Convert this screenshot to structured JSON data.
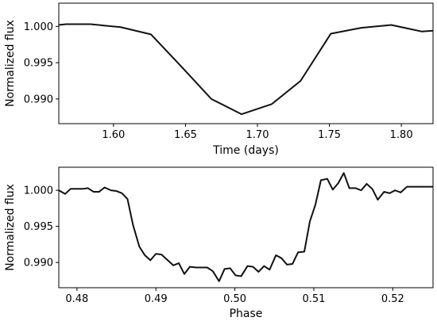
{
  "colors": {
    "line": "#111111",
    "background": "#ffffff"
  },
  "chart_data": [
    {
      "type": "line",
      "xlabel": "Time (days)",
      "ylabel": "Normalized flux",
      "xlim": [
        1.562,
        1.822
      ],
      "ylim": [
        0.9866,
        1.0032
      ],
      "xticks": [
        1.6,
        1.65,
        1.7,
        1.75,
        1.8
      ],
      "xtick_labels": [
        "1.60",
        "1.65",
        "1.70",
        "1.75",
        "1.80"
      ],
      "yticks": [
        0.99,
        0.995,
        1.0
      ],
      "ytick_labels": [
        "0.990",
        "0.995",
        "1.000"
      ],
      "grid": false,
      "series": [
        {
          "x": [
            1.562,
            1.567,
            1.584,
            1.605,
            1.626,
            1.647,
            1.668,
            1.689,
            1.71,
            1.73,
            1.751,
            1.772,
            1.793,
            1.814,
            1.822
          ],
          "y": [
            1.0002,
            1.0003,
            1.0003,
            0.9999,
            0.9989,
            0.9945,
            0.99,
            0.9879,
            0.9893,
            0.9925,
            0.999,
            0.9998,
            1.0002,
            0.9993,
            0.9994
          ]
        }
      ]
    },
    {
      "type": "line",
      "xlabel": "Phase",
      "ylabel": "Normalized flux",
      "xlim": [
        0.4777,
        0.5251
      ],
      "ylim": [
        0.9865,
        1.0032
      ],
      "xticks": [
        0.48,
        0.49,
        0.5,
        0.51,
        0.52
      ],
      "xtick_labels": [
        "0.48",
        "0.49",
        "0.50",
        "0.51",
        "0.52"
      ],
      "yticks": [
        0.99,
        0.995,
        1.0
      ],
      "ytick_labels": [
        "0.990",
        "0.995",
        "1.000"
      ],
      "grid": false,
      "series": [
        {
          "x": [
            0.4777,
            0.4785,
            0.4792,
            0.4799,
            0.4807,
            0.4814,
            0.4821,
            0.4828,
            0.4835,
            0.4843,
            0.485,
            0.4857,
            0.4864,
            0.4871,
            0.4879,
            0.4886,
            0.4893,
            0.49,
            0.4907,
            0.4915,
            0.4922,
            0.4929,
            0.4936,
            0.4943,
            0.4951,
            0.4958,
            0.4965,
            0.4972,
            0.498,
            0.4987,
            0.4994,
            0.5001,
            0.5008,
            0.5016,
            0.5023,
            0.503,
            0.5037,
            0.5044,
            0.5052,
            0.5059,
            0.5066,
            0.5073,
            0.508,
            0.5088,
            0.5095,
            0.5102,
            0.5109,
            0.5117,
            0.5124,
            0.5131,
            0.5138,
            0.5145,
            0.5153,
            0.516,
            0.5167,
            0.5174,
            0.5181,
            0.5189,
            0.5196,
            0.5203,
            0.521,
            0.5218,
            0.5225,
            0.5232,
            0.5239,
            0.5246,
            0.5251
          ],
          "y": [
            1.0,
            0.9995,
            1.0002,
            1.0002,
            1.0002,
            1.0003,
            0.9998,
            0.9998,
            1.0004,
            1.0,
            0.9999,
            0.9996,
            0.9988,
            0.9952,
            0.9922,
            0.991,
            0.9903,
            0.9912,
            0.9911,
            0.9903,
            0.9896,
            0.9899,
            0.9884,
            0.9894,
            0.9893,
            0.9893,
            0.9893,
            0.9888,
            0.9874,
            0.9891,
            0.9892,
            0.9882,
            0.9881,
            0.9895,
            0.9894,
            0.9887,
            0.9895,
            0.989,
            0.991,
            0.9906,
            0.9897,
            0.9898,
            0.9914,
            0.9915,
            0.9957,
            0.998,
            1.0014,
            1.0016,
            1.0001,
            1.001,
            1.0024,
            1.0003,
            1.0003,
            1.0,
            1.0009,
            1.0002,
            0.9987,
            0.9998,
            0.9996,
            1.0,
            0.9997,
            1.0005,
            1.0005,
            1.0005,
            1.0005,
            1.0005,
            1.0005
          ]
        }
      ]
    }
  ]
}
